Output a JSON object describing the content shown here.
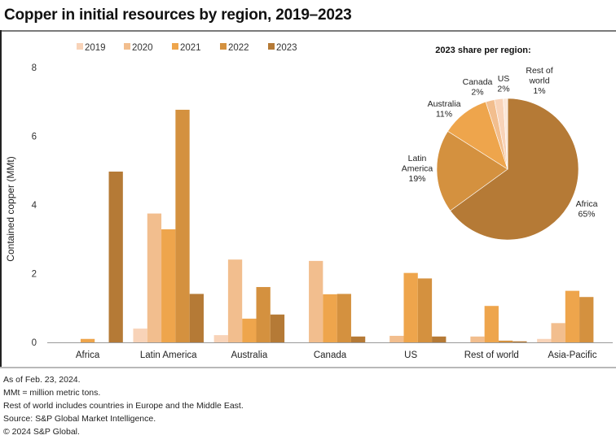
{
  "title": "Copper in initial resources by region, 2019–2023",
  "footer": [
    "As of Feb. 23, 2024.",
    "MMt = million metric tons.",
    "Rest of world includes countries in Europe and the Middle East.",
    "Source: S&P Global Market Intelligence.",
    "© 2024 S&P Global."
  ],
  "colors": {
    "2019": "#F8D3B8",
    "2020": "#F2BE8E",
    "2021": "#EEA54C",
    "2022": "#D4913F",
    "2023": "#B57A36"
  },
  "chart_data": [
    {
      "type": "bar",
      "title": "Copper in initial resources by region, 2019–2023",
      "xlabel": "",
      "ylabel": "Contained copper (MMt)",
      "ylim": [
        0,
        8
      ],
      "yticks": [
        0,
        2,
        4,
        6,
        8
      ],
      "grid": false,
      "legend_position": "top",
      "categories": [
        "Africa",
        "Latin America",
        "Australia",
        "Canada",
        "US",
        "Rest of world",
        "Asia-Pacific"
      ],
      "series": [
        {
          "name": "2019",
          "values": [
            0,
            0.4,
            0.21,
            0,
            0,
            0,
            0.1
          ]
        },
        {
          "name": "2020",
          "values": [
            0,
            3.75,
            2.41,
            2.37,
            0.19,
            0.17,
            0.56
          ]
        },
        {
          "name": "2021",
          "values": [
            0.1,
            3.29,
            0.69,
            1.4,
            2.02,
            1.06,
            1.5
          ]
        },
        {
          "name": "2022",
          "values": [
            0,
            6.77,
            1.61,
            1.41,
            1.86,
            0.05,
            1.32
          ]
        },
        {
          "name": "2023",
          "values": [
            4.97,
            1.41,
            0.81,
            0.17,
            0.17,
            0.03,
            0
          ]
        }
      ]
    },
    {
      "type": "pie",
      "title": "2023 share per region:",
      "slices": [
        {
          "label": "Africa",
          "value": 65,
          "label_text": [
            "Africa",
            "65%"
          ],
          "color_key": "2023"
        },
        {
          "label": "Latin America",
          "value": 19,
          "label_text": [
            "Latin",
            "America",
            "19%"
          ],
          "color_key": "2022"
        },
        {
          "label": "Australia",
          "value": 11,
          "label_text": [
            "Australia",
            "11%"
          ],
          "color_key": "2021"
        },
        {
          "label": "Canada",
          "value": 2,
          "label_text": [
            "Canada",
            "2%"
          ],
          "color_key": "2020"
        },
        {
          "label": "US",
          "value": 2,
          "label_text": [
            "US",
            "2%"
          ],
          "color_key": "2019"
        },
        {
          "label": "Rest of world",
          "value": 1,
          "label_text": [
            "Rest of",
            "world",
            "1%"
          ],
          "color_key": "rest"
        }
      ],
      "rest_color": "#FBE6D6"
    }
  ]
}
